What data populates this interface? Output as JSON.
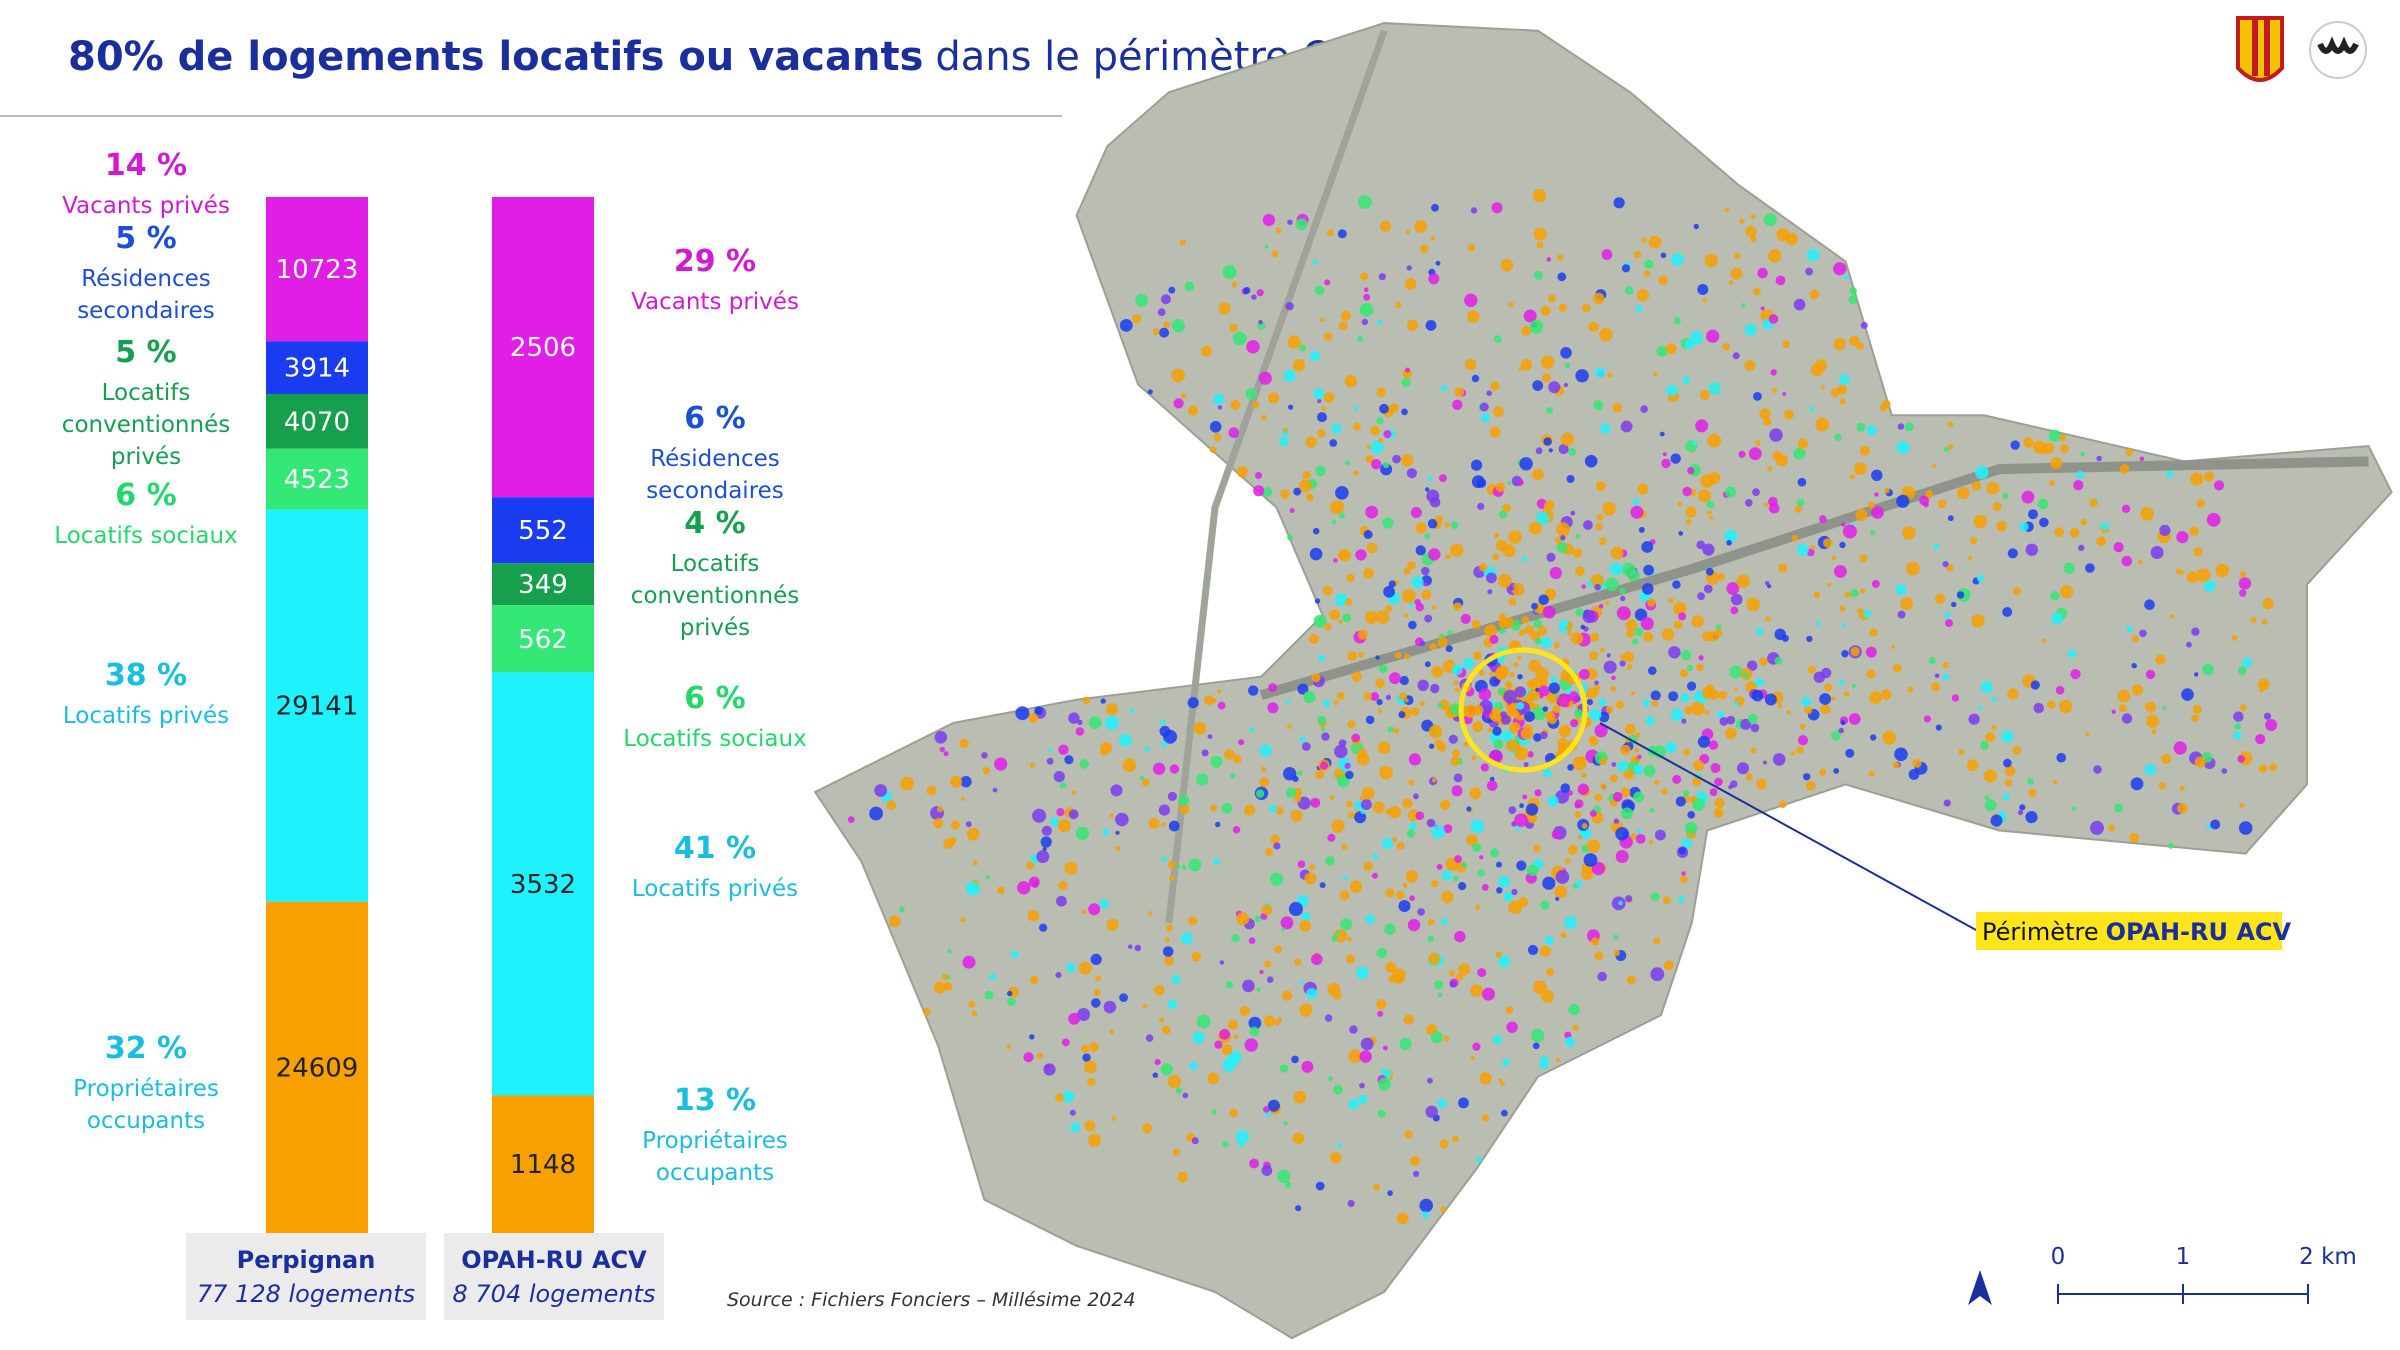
{
  "chart_data": {
    "type": "stacked-bar",
    "title": "80% de logements locatifs ou vacants",
    "subtitle": "dans le périmètre OPAH-RU",
    "categories": [
      "Perpignan",
      "OPAH-RU ACV"
    ],
    "category_notes": [
      "77 128 logements",
      "8 704 logements"
    ],
    "series": [
      {
        "name": "Vacants privés",
        "color": "#e01ee6",
        "values": [
          10723,
          2506
        ],
        "percent_labels": [
          "14 %",
          "29 %"
        ]
      },
      {
        "name": "Résidences secondaires",
        "color": "#1a3cf0",
        "values": [
          3914,
          552
        ],
        "percent_labels": [
          "5 %",
          "6 %"
        ]
      },
      {
        "name": "Locatifs conventionnés privés",
        "color": "#16a04e",
        "values": [
          4070,
          349
        ],
        "percent_labels": [
          "5 %",
          "4 %"
        ]
      },
      {
        "name": "Locatifs sociaux",
        "color": "#33e874",
        "values": [
          4523,
          562
        ],
        "percent_labels": [
          "6 %",
          "6 %"
        ]
      },
      {
        "name": "Locatifs privés",
        "color": "#1ef2ff",
        "values": [
          29141,
          3532
        ],
        "percent_labels": [
          "38 %",
          "41 %"
        ]
      },
      {
        "name": "Propriétaires occupants",
        "color": "#f7a000",
        "values": [
          24609,
          1148
        ],
        "percent_labels": [
          "32 %",
          "13 %"
        ]
      }
    ],
    "source": "Source : Fichiers Fonciers – Millésime 2024"
  },
  "map": {
    "annotation_prefix": "Périmètre",
    "annotation_bold": "OPAH-RU ACV",
    "scale_labels": [
      "0",
      "1",
      "2 km"
    ]
  }
}
